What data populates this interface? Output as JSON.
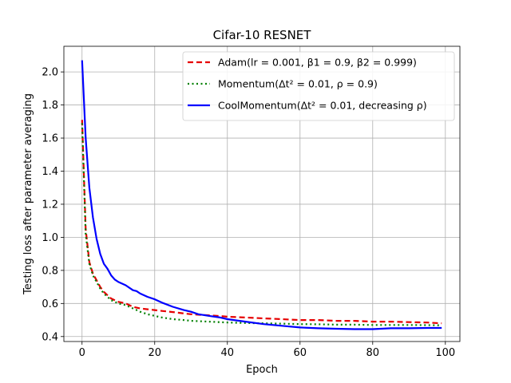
{
  "chart_data": {
    "type": "line",
    "title": "Cifar-10 RESNET",
    "xlabel": "Epoch",
    "ylabel": "Testing loss after parameter averaging",
    "xlim": [
      -5,
      104
    ],
    "ylim": [
      0.37,
      2.155
    ],
    "xticks": [
      0,
      20,
      40,
      60,
      80,
      100
    ],
    "yticks": [
      0.4,
      0.6,
      0.8,
      1.0,
      1.2,
      1.4,
      1.6,
      1.8,
      2.0
    ],
    "xtick_labels": [
      "0",
      "20",
      "40",
      "60",
      "80",
      "100"
    ],
    "ytick_labels": [
      "0.4",
      "0.6",
      "0.8",
      "1.0",
      "1.2",
      "1.4",
      "1.6",
      "1.8",
      "2.0"
    ],
    "grid": true,
    "legend_position": "top-right",
    "series": [
      {
        "name": "Adam(lr = 0.001, β1 = 0.9, β2 = 0.999)",
        "color": "#e60000",
        "dash": "dashed",
        "x": [
          0,
          1,
          2,
          3,
          4,
          5,
          6,
          7,
          8,
          9,
          10,
          12,
          14,
          16,
          18,
          20,
          22,
          25,
          28,
          30,
          32,
          35,
          38,
          40,
          45,
          50,
          55,
          60,
          65,
          70,
          75,
          80,
          85,
          90,
          95,
          99
        ],
        "y": [
          1.71,
          1.05,
          0.85,
          0.78,
          0.74,
          0.7,
          0.67,
          0.65,
          0.63,
          0.62,
          0.61,
          0.6,
          0.58,
          0.57,
          0.565,
          0.56,
          0.555,
          0.548,
          0.54,
          0.535,
          0.532,
          0.528,
          0.524,
          0.52,
          0.515,
          0.51,
          0.505,
          0.5,
          0.5,
          0.495,
          0.495,
          0.49,
          0.49,
          0.487,
          0.485,
          0.48
        ]
      },
      {
        "name": "Momentum(Δt² = 0.01, ρ = 0.9)",
        "color": "#008000",
        "dash": "dotted",
        "x": [
          0,
          1,
          2,
          3,
          4,
          5,
          6,
          7,
          8,
          9,
          10,
          12,
          14,
          16,
          18,
          20,
          22,
          25,
          28,
          30,
          35,
          40,
          45,
          50,
          55,
          60,
          65,
          70,
          75,
          80,
          85,
          90,
          95,
          99
        ],
        "y": [
          1.69,
          1.02,
          0.84,
          0.77,
          0.73,
          0.69,
          0.66,
          0.64,
          0.62,
          0.61,
          0.6,
          0.59,
          0.57,
          0.55,
          0.535,
          0.525,
          0.515,
          0.505,
          0.5,
          0.495,
          0.49,
          0.485,
          0.482,
          0.48,
          0.478,
          0.475,
          0.474,
          0.472,
          0.472,
          0.47,
          0.47,
          0.47,
          0.469,
          0.468
        ]
      },
      {
        "name": "CoolMomentum(Δt² = 0.01, decreasing ρ)",
        "color": "#0000ff",
        "dash": "solid",
        "x": [
          0,
          1,
          2,
          3,
          4,
          5,
          6,
          7,
          8,
          9,
          10,
          12,
          14,
          15,
          16,
          18,
          20,
          22,
          25,
          28,
          30,
          32,
          35,
          38,
          40,
          45,
          50,
          55,
          60,
          65,
          70,
          75,
          80,
          85,
          90,
          95,
          99
        ],
        "y": [
          2.07,
          1.6,
          1.3,
          1.12,
          0.99,
          0.9,
          0.84,
          0.81,
          0.77,
          0.745,
          0.73,
          0.71,
          0.68,
          0.675,
          0.66,
          0.64,
          0.625,
          0.605,
          0.58,
          0.56,
          0.55,
          0.535,
          0.525,
          0.515,
          0.505,
          0.49,
          0.475,
          0.465,
          0.455,
          0.45,
          0.447,
          0.445,
          0.445,
          0.45,
          0.45,
          0.452,
          0.452
        ]
      }
    ]
  }
}
